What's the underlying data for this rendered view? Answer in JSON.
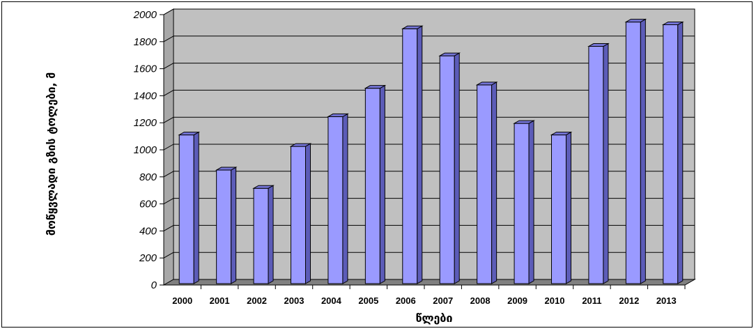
{
  "chart_data": {
    "type": "bar",
    "title": "",
    "xlabel": "წლები",
    "ylabel": "მოწყვლადი გზის ტოლები, მ",
    "categories": [
      "2000",
      "2001",
      "2002",
      "2003",
      "2004",
      "2005",
      "2006",
      "2007",
      "2008",
      "2009",
      "2010",
      "2011",
      "2012",
      "2013"
    ],
    "values": [
      1100,
      840,
      705,
      1015,
      1235,
      1445,
      1885,
      1685,
      1470,
      1185,
      1100,
      1755,
      1935,
      1915
    ],
    "ylim": [
      0,
      2000
    ],
    "yticks": [
      "0",
      "200",
      "400",
      "600",
      "800",
      "1000",
      "1200",
      "1400",
      "1600",
      "1800",
      "2000"
    ],
    "grid": true,
    "legend": "none",
    "colors": {
      "bar_front": "#9a9aff",
      "bar_side": "#5c5cb8",
      "bar_top": "#7474d6",
      "wall": "#c0c0c0",
      "floor": "#808080",
      "gridline": "#000000"
    }
  }
}
